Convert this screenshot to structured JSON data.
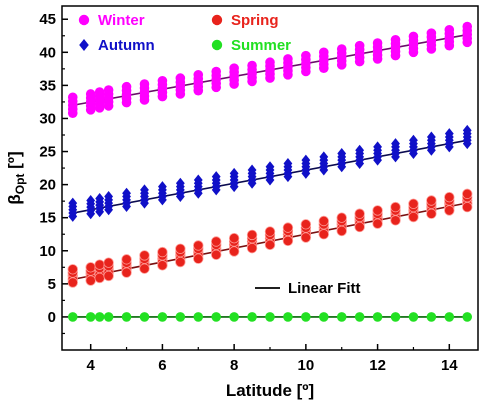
{
  "chart_data": {
    "type": "scatter",
    "xlabel": "Latitude [º]",
    "ylabel": {
      "main": "β",
      "sub": "Opt",
      "unit": " [º]"
    },
    "xlim": [
      3.2,
      14.8
    ],
    "ylim": [
      -5,
      47
    ],
    "xticks": [
      4,
      6,
      8,
      10,
      12,
      14
    ],
    "yticks": [
      0,
      5,
      10,
      15,
      20,
      25,
      30,
      35,
      40,
      45
    ],
    "grid": false,
    "legend": {
      "position": "top-left",
      "fit_label": "Linear Fitt"
    },
    "x": [
      3.5,
      4.0,
      4.25,
      4.5,
      5.0,
      5.5,
      6.0,
      6.5,
      7.0,
      7.5,
      8.0,
      8.5,
      9.0,
      9.5,
      10.0,
      10.5,
      11.0,
      11.5,
      12.0,
      12.5,
      13.0,
      13.5,
      14.0,
      14.5
    ],
    "series": [
      {
        "name": "Winter",
        "color": "#ff00ff",
        "marker": "circle",
        "fit": {
          "intercept": 28.6,
          "slope": 0.97
        },
        "spread": 1.2,
        "values": [
          32.0,
          32.5,
          32.8,
          33.1,
          33.6,
          34.0,
          34.5,
          34.9,
          35.4,
          35.9,
          36.4,
          36.8,
          37.3,
          37.8,
          38.3,
          38.8,
          39.3,
          39.8,
          40.2,
          40.7,
          41.2,
          41.7,
          42.2,
          42.7
        ]
      },
      {
        "name": "Autumn",
        "color": "#1010c8",
        "marker": "diamond",
        "fit": {
          "intercept": 12.2,
          "slope": 1.0
        },
        "spread": 1.0,
        "values": [
          16.2,
          16.6,
          16.9,
          17.2,
          17.7,
          18.2,
          18.7,
          19.2,
          19.7,
          20.2,
          20.7,
          21.2,
          21.7,
          22.2,
          22.7,
          23.2,
          23.7,
          24.2,
          24.7,
          25.2,
          25.7,
          26.2,
          26.7,
          27.2
        ]
      },
      {
        "name": "Spring",
        "color": "#e8231c",
        "marker": "circle",
        "fit": {
          "intercept": 2.0,
          "slope": 1.05
        },
        "spread": 1.0,
        "values": [
          6.2,
          6.5,
          6.9,
          7.2,
          7.7,
          8.3,
          8.8,
          9.3,
          9.8,
          10.4,
          10.9,
          11.4,
          11.9,
          12.5,
          13.0,
          13.5,
          14.0,
          14.6,
          15.1,
          15.6,
          16.1,
          16.6,
          17.1,
          17.6
        ]
      },
      {
        "name": "Summer",
        "color": "#22e022",
        "marker": "circle",
        "fit": {
          "intercept": 0.0,
          "slope": 0.0
        },
        "spread": 0.0,
        "values": [
          0,
          0,
          0,
          0,
          0,
          0,
          0,
          0,
          0,
          0,
          0,
          0,
          0,
          0,
          0,
          0,
          0,
          0,
          0,
          0,
          0,
          0,
          0,
          0
        ]
      }
    ]
  }
}
